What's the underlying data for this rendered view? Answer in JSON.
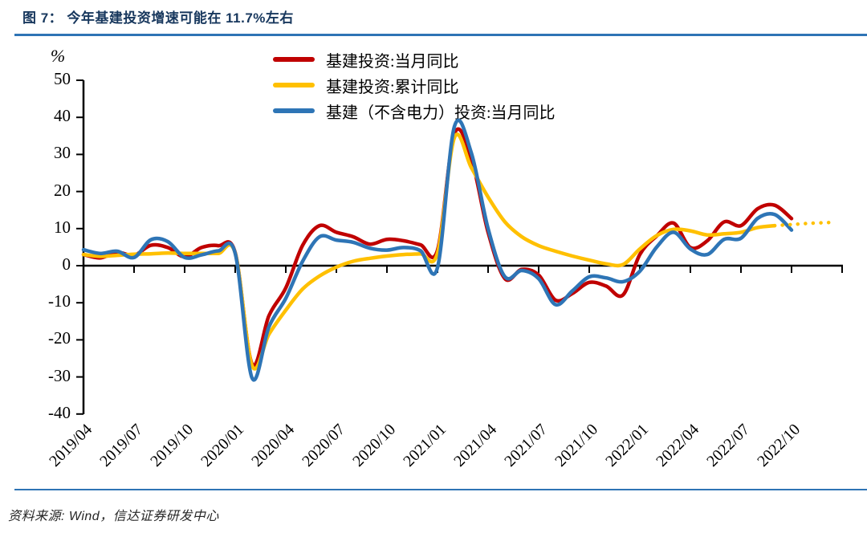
{
  "title": "图 7： 今年基建投资增速可能在 11.7%左右",
  "footer": {
    "source": "资料来源: Wind，信达证券研发中心"
  },
  "colors": {
    "title_text": "#17375D",
    "divider_blue": "#2E74B5",
    "axis_black": "#000000",
    "series_red": "#C00000",
    "series_yellow": "#FFC000",
    "series_blue": "#2E75B6"
  },
  "legend": {
    "items": [
      {
        "label": "基建投资:当月同比",
        "color": "#C00000"
      },
      {
        "label": "基建投资:累计同比",
        "color": "#FFC000"
      },
      {
        "label": "基建（不含电力）投资:当月同比",
        "color": "#2E75B6"
      }
    ]
  },
  "chart_data": {
    "type": "line",
    "unit_label": "%",
    "ylim": [
      -40,
      50
    ],
    "y_ticks": [
      50,
      40,
      30,
      20,
      10,
      0,
      -10,
      -20,
      -30,
      -40
    ],
    "grid": "off",
    "legend_position": "top-center",
    "x_tick_labels": [
      "2019/04",
      "2019/07",
      "2019/10",
      "2020/01",
      "2020/04",
      "2020/07",
      "2020/10",
      "2021/01",
      "2021/04",
      "2021/07",
      "2021/10",
      "2022/01",
      "2022/04",
      "2022/07",
      "2022/10"
    ],
    "months": [
      "2019/04",
      "2019/05",
      "2019/06",
      "2019/07",
      "2019/08",
      "2019/09",
      "2019/10",
      "2019/11",
      "2019/12",
      "2020/01",
      "2020/02",
      "2020/03",
      "2020/04",
      "2020/05",
      "2020/06",
      "2020/07",
      "2020/08",
      "2020/09",
      "2020/10",
      "2020/11",
      "2020/12",
      "2021/01",
      "2021/02",
      "2021/03",
      "2021/04",
      "2021/05",
      "2021/06",
      "2021/07",
      "2021/08",
      "2021/09",
      "2021/10",
      "2021/11",
      "2021/12",
      "2022/01",
      "2022/02",
      "2022/03",
      "2022/04",
      "2022/05",
      "2022/06",
      "2022/07",
      "2022/08",
      "2022/09",
      "2022/10"
    ],
    "series": [
      {
        "name": "基建投资:当月同比",
        "color": "#C00000",
        "style": "solid",
        "values": [
          3.0,
          2.1,
          3.6,
          2.8,
          5.5,
          4.9,
          2.4,
          4.9,
          5.4,
          3.5,
          -26.5,
          -13.5,
          -6.0,
          5.5,
          10.8,
          9.0,
          7.8,
          5.8,
          7.1,
          6.7,
          5.6,
          4.2,
          35.5,
          29.0,
          9.0,
          -3.5,
          -1.0,
          -2.5,
          -9.3,
          -7.5,
          -4.5,
          -5.5,
          -7.9,
          3.0,
          8.0,
          11.5,
          4.9,
          6.7,
          11.8,
          10.8,
          15.4,
          16.3,
          12.7
        ]
      },
      {
        "name": "基建投资:累计同比",
        "color": "#FFC000",
        "style": "solid",
        "values": [
          3.0,
          2.5,
          2.8,
          3.1,
          3.2,
          3.4,
          3.3,
          3.3,
          3.3,
          3.4,
          -27.0,
          -18.5,
          -12.0,
          -6.3,
          -2.8,
          -0.4,
          1.2,
          2.0,
          2.6,
          3.0,
          3.2,
          3.4,
          34.5,
          26.5,
          18.5,
          11.8,
          7.8,
          5.4,
          3.9,
          2.6,
          1.5,
          0.5,
          0.3,
          4.5,
          8.1,
          9.8,
          9.4,
          8.3,
          8.6,
          9.0,
          10.3,
          10.8
        ]
      },
      {
        "name": "基建（不含电力）投资:当月同比",
        "color": "#2E75B6",
        "style": "solid",
        "values": [
          4.3,
          3.3,
          3.9,
          2.2,
          7.0,
          6.5,
          2.2,
          2.9,
          4.0,
          3.3,
          -30.3,
          -16.5,
          -8.8,
          1.2,
          7.8,
          6.9,
          6.3,
          4.7,
          4.2,
          4.9,
          4.0,
          -0.5,
          37.5,
          30.5,
          10.0,
          -3.0,
          -1.3,
          -3.5,
          -10.5,
          -6.8,
          -3.0,
          -3.3,
          -4.3,
          -1.5,
          5.0,
          9.0,
          4.5,
          3.0,
          7.1,
          7.4,
          12.8,
          13.8,
          9.6
        ]
      }
    ],
    "forecast": {
      "series": "基建投资:累计同比",
      "style": "dotted",
      "color": "#FFC000",
      "x_index": [
        41,
        42,
        43,
        44,
        44.5
      ],
      "values": [
        10.8,
        11.1,
        11.4,
        11.6,
        11.7
      ]
    }
  }
}
